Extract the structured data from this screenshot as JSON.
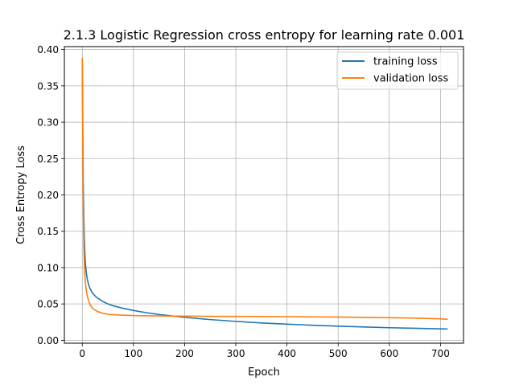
{
  "chart_data": {
    "type": "line",
    "title": "2.1.3 Logistic Regression cross entropy for learning rate 0.001",
    "xlabel": "Epoch",
    "ylabel": "Cross Entropy Loss",
    "xlim": [
      -35,
      745
    ],
    "ylim": [
      -0.004,
      0.404
    ],
    "xticks": [
      0,
      100,
      200,
      300,
      400,
      500,
      600,
      700
    ],
    "yticks": [
      0.0,
      0.05,
      0.1,
      0.15,
      0.2,
      0.25,
      0.3,
      0.35,
      0.4
    ],
    "ytick_labels": [
      "0.00",
      "0.05",
      "0.10",
      "0.15",
      "0.20",
      "0.25",
      "0.30",
      "0.35",
      "0.40"
    ],
    "grid": true,
    "legend_position": "top-right",
    "series": [
      {
        "name": "training loss",
        "color": "#1f77b4",
        "x": [
          0,
          1,
          2,
          3,
          4,
          5,
          6,
          8,
          10,
          13,
          16,
          20,
          25,
          30,
          40,
          50,
          60,
          80,
          100,
          125,
          150,
          175,
          200,
          250,
          300,
          350,
          400,
          450,
          500,
          550,
          600,
          650,
          700,
          713
        ],
        "y": [
          0.385,
          0.29,
          0.215,
          0.17,
          0.14,
          0.12,
          0.107,
          0.092,
          0.083,
          0.075,
          0.07,
          0.065,
          0.061,
          0.058,
          0.0535,
          0.05,
          0.0475,
          0.044,
          0.041,
          0.038,
          0.0355,
          0.0335,
          0.0315,
          0.0285,
          0.026,
          0.0238,
          0.0222,
          0.0207,
          0.0194,
          0.0183,
          0.0173,
          0.0165,
          0.0157,
          0.0155
        ]
      },
      {
        "name": "validation loss",
        "color": "#ff7f0e",
        "x": [
          0,
          1,
          2,
          3,
          4,
          5,
          6,
          8,
          10,
          13,
          16,
          20,
          25,
          30,
          40,
          50,
          60,
          80,
          100,
          125,
          150,
          175,
          200,
          250,
          300,
          350,
          400,
          450,
          500,
          550,
          600,
          650,
          700,
          713
        ],
        "y": [
          0.388,
          0.26,
          0.18,
          0.13,
          0.105,
          0.09,
          0.08,
          0.068,
          0.06,
          0.053,
          0.048,
          0.044,
          0.0415,
          0.0395,
          0.037,
          0.0358,
          0.0352,
          0.0345,
          0.034,
          0.0337,
          0.0335,
          0.0333,
          0.0332,
          0.033,
          0.0328,
          0.0327,
          0.0325,
          0.0322,
          0.032,
          0.0315,
          0.031,
          0.0305,
          0.0295,
          0.029
        ]
      }
    ]
  }
}
